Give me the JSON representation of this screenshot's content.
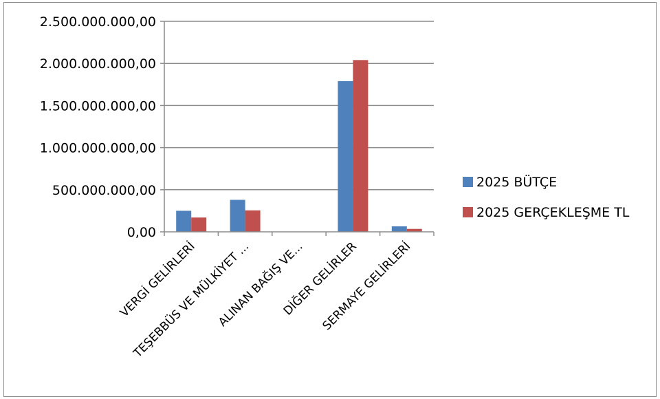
{
  "chart_data": {
    "type": "bar",
    "categories": [
      "VERGİ GELİRLERİ",
      "TEŞEBBÜS VE MÜLKİYET ...",
      "ALINAN BAĞIŞ VE...",
      "DİĞER GELİRLER",
      "SERMAYE GELİRLERİ"
    ],
    "series": [
      {
        "name": "2025 BÜTÇE",
        "color": "#4f81bd",
        "values": [
          250000000,
          380000000,
          0,
          1790000000,
          65000000
        ]
      },
      {
        "name": "2025 GERÇEKLEŞME TL",
        "color": "#c0504d",
        "values": [
          170000000,
          255000000,
          0,
          2040000000,
          35000000
        ]
      }
    ],
    "yticks": [
      "0,00",
      "500.000.000,00",
      "1.000.000.000,00",
      "1.500.000.000,00",
      "2.000.000.000,00",
      "2.500.000.000,00"
    ],
    "ylim": [
      0,
      2500000000
    ],
    "title": "",
    "xlabel": "",
    "ylabel": "",
    "grid": true,
    "legend_position": "right"
  }
}
